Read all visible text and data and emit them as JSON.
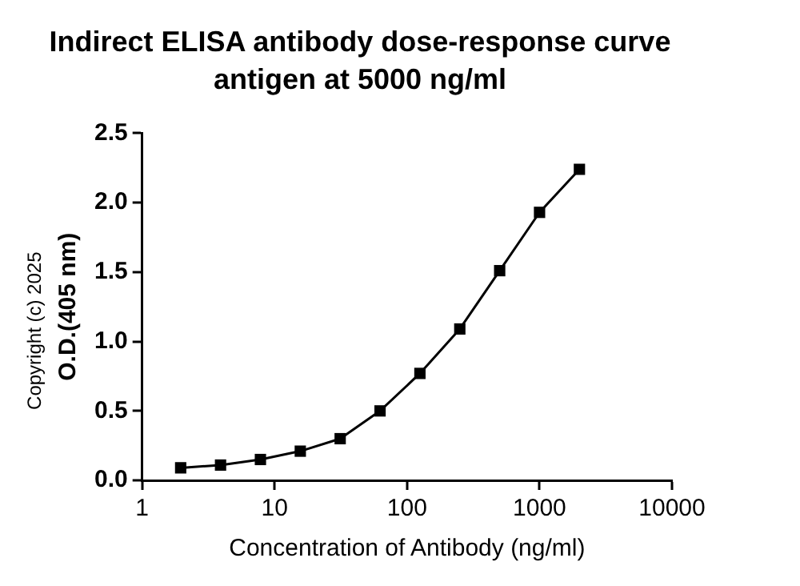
{
  "chart_data": {
    "type": "line",
    "title": "Indirect ELISA antibody dose-response curve",
    "subtitle": "antigen at 5000 ng/ml",
    "xlabel": "Concentration of Antibody (ng/ml)",
    "ylabel": "O.D.(405 nm)",
    "annotations": [
      "Copyright (c) 2025"
    ],
    "x": [
      1.953,
      3.906,
      7.8125,
      15.625,
      31.25,
      62.5,
      125,
      250,
      500,
      1000,
      2000
    ],
    "series": [
      {
        "color": "#000000",
        "values": [
          0.09,
          0.11,
          0.15,
          0.21,
          0.3,
          0.5,
          0.77,
          1.09,
          1.51,
          1.93,
          2.24
        ]
      }
    ],
    "log": "x",
    "xlim": [
      1,
      10000
    ],
    "xticks": [
      1,
      10,
      100,
      1000,
      10000
    ],
    "ylim": [
      0,
      2.5
    ],
    "yticks": [
      {
        "value": 0,
        "label": "0.0"
      },
      {
        "value": 0.5,
        "label": "0.5"
      },
      {
        "value": 1,
        "label": "1.0"
      },
      {
        "value": 1.5,
        "label": "1.5"
      },
      {
        "value": 2,
        "label": "2.0"
      },
      {
        "value": 2.5,
        "label": "2.5"
      }
    ],
    "grid": false,
    "legend": false,
    "marker": "square",
    "line_style": "solid"
  }
}
